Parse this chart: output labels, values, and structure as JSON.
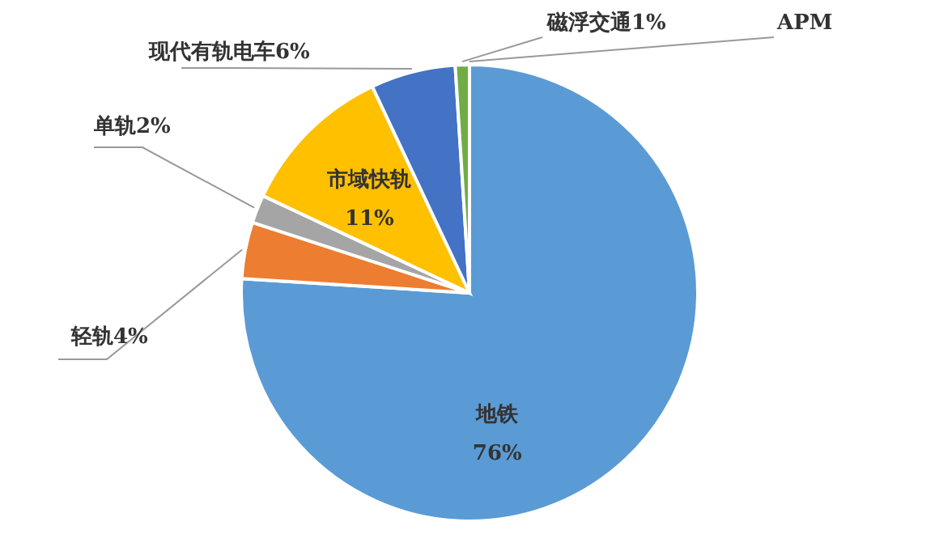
{
  "chart_data": {
    "type": "pie",
    "categories": [
      "地铁",
      "轻轨",
      "单轨",
      "市域快轨",
      "现代有轨电车",
      "磁浮交通",
      "APM"
    ],
    "values": [
      76,
      4,
      2,
      11,
      6,
      1,
      0
    ],
    "value_labels": [
      "76%",
      "4%",
      "2%",
      "11%",
      "6%",
      "1%",
      null
    ],
    "colors": [
      "#5b9bd5",
      "#ed7d31",
      "#a5a5a5",
      "#ffc000",
      "#4472c4",
      "#70ad47",
      null
    ],
    "legend": false
  }
}
